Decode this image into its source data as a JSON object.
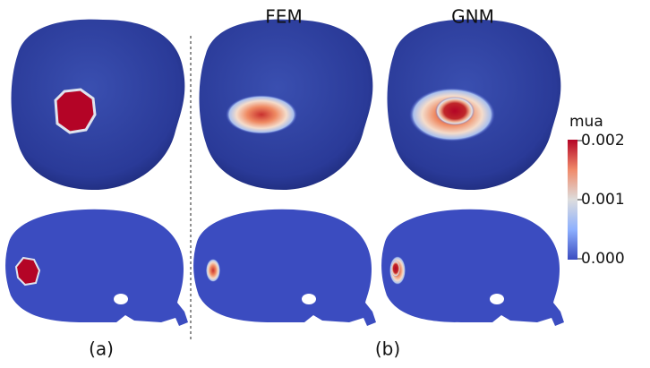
{
  "column_titles": [
    "FEM",
    "GNM"
  ],
  "colorbar": {
    "title": "mua",
    "ticks": [
      0.002,
      0.001,
      {
        "value": 0,
        "label": "0.000"
      }
    ]
  },
  "panel_labels": [
    "(a)",
    "(b)"
  ]
}
